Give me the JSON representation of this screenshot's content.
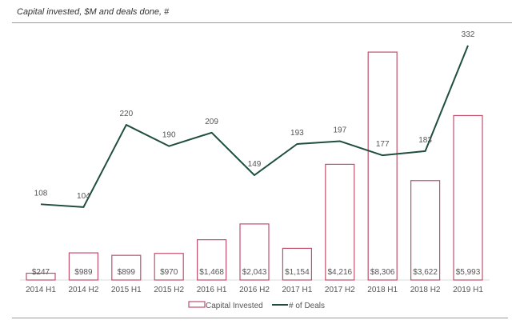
{
  "chart_data": {
    "type": "bar+line",
    "title": "Capital invested, $M and deals done, #",
    "categories": [
      "2014 H1",
      "2014 H2",
      "2015 H1",
      "2015 H2",
      "2016 H1",
      "2016 H2",
      "2017 H1",
      "2017 H2",
      "2018 H1",
      "2018 H2",
      "2019 H1"
    ],
    "series": [
      {
        "name": "Capital Invested",
        "type": "bar",
        "color": "#c0506e",
        "values": [
          247,
          989,
          899,
          970,
          1468,
          2043,
          1154,
          4216,
          8306,
          3622,
          5993
        ],
        "labels": [
          "$247",
          "$989",
          "$899",
          "$970",
          "$1,468",
          "$2,043",
          "$1,154",
          "$4,216",
          "$8,306",
          "$3,622",
          "$5,993"
        ]
      },
      {
        "name": "# of Deals",
        "type": "line",
        "color": "#1f4e3d",
        "values": [
          108,
          104,
          220,
          190,
          209,
          149,
          193,
          197,
          177,
          183,
          332
        ],
        "labels": [
          "108",
          "104",
          "220",
          "190",
          "209",
          "149",
          "193",
          "197",
          "177",
          "183",
          "332"
        ]
      }
    ],
    "legend": "bottom",
    "grid": false
  }
}
